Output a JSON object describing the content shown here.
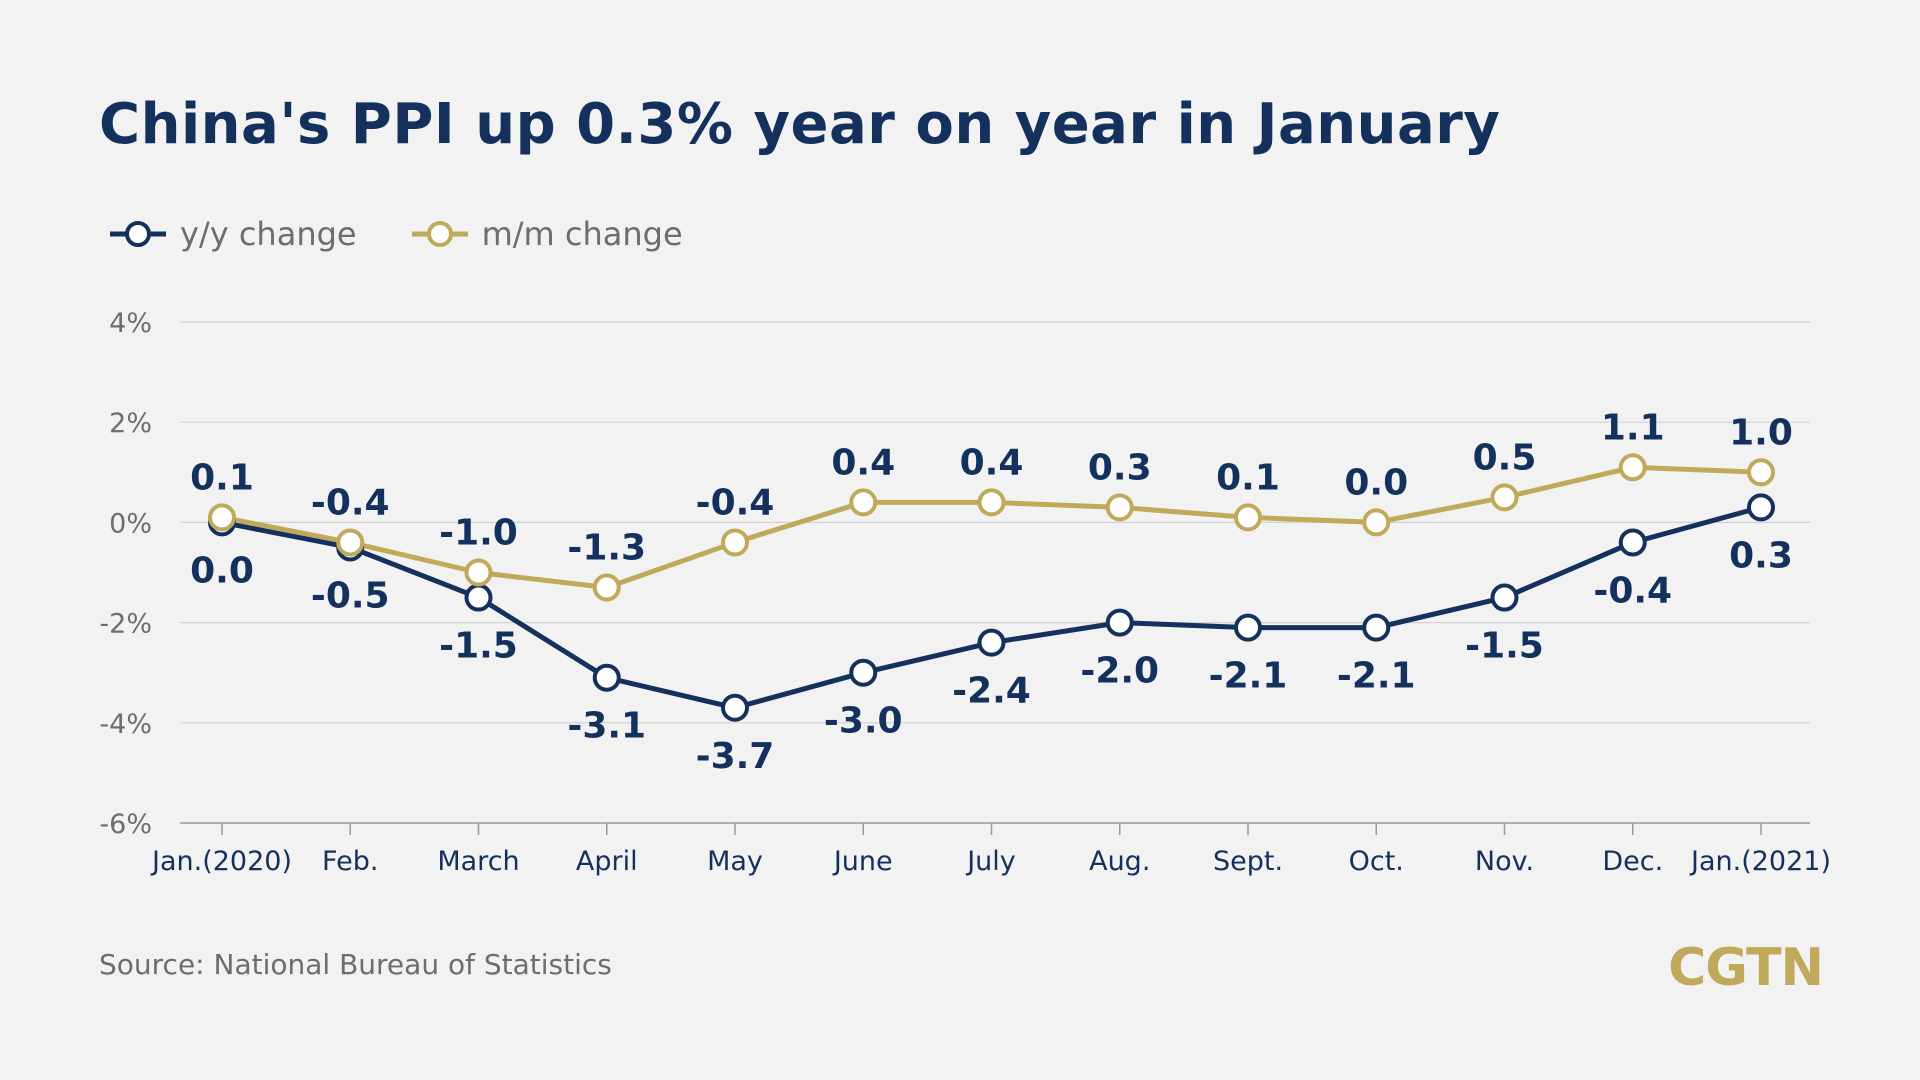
{
  "chart_data": {
    "type": "line",
    "title": "China's PPI up 0.3% year on year in January",
    "categories": [
      "Jan.(2020)",
      "Feb.",
      "March",
      "April",
      "May",
      "June",
      "July",
      "Aug.",
      "Sept.",
      "Oct.",
      "Nov.",
      "Dec.",
      "Jan.(2021)"
    ],
    "series": [
      {
        "name": "y/y change",
        "color": "#13315c",
        "values": [
          0.0,
          -0.5,
          -1.5,
          -3.1,
          -3.7,
          -3.0,
          -2.4,
          -2.0,
          -2.1,
          -2.1,
          -1.5,
          -0.4,
          0.3
        ],
        "labels": [
          "0.0",
          "-0.5",
          "-1.5",
          "-3.1",
          "-3.7",
          "-3.0",
          "-2.4",
          "-2.0",
          "-2.1",
          "-2.1",
          "-1.5",
          "-0.4",
          "0.3"
        ]
      },
      {
        "name": "m/m change",
        "color": "#c1a95c",
        "values": [
          0.1,
          -0.4,
          -1.0,
          -1.3,
          -0.4,
          0.4,
          0.4,
          0.3,
          0.1,
          0.0,
          0.5,
          1.1,
          1.0
        ],
        "labels": [
          "0.1",
          "-0.4",
          "-1.0",
          "-1.3",
          "-0.4",
          "0.4",
          "0.4",
          "0.3",
          "0.1",
          "0.0",
          "0.5",
          "1.1",
          "1.0"
        ]
      }
    ],
    "yticks": [
      4,
      2,
      0,
      -2,
      -4,
      -6
    ],
    "ytick_labels": [
      "4%",
      "2%",
      "0%",
      "-2%",
      "-4%",
      "-6%"
    ],
    "ylim": [
      -6,
      4
    ],
    "grid": true,
    "legend_position": "top-left"
  },
  "source": "Source: National Bureau of Statistics",
  "logo": "CGTN"
}
